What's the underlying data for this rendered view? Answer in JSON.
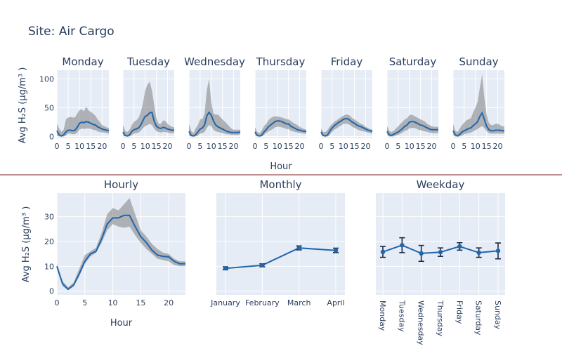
{
  "title": "Site: Air Cargo",
  "colors": {
    "plot_bg": "#e5ecf6",
    "grid": "#ffffff",
    "line": "#2166ac",
    "band": "#808080",
    "divider": "#7f1d1d",
    "text": "#2a3f5f"
  },
  "shared": {
    "top_ylabel": "Avg H₂S (µg/m³ )",
    "top_xlabel": "Hour",
    "bottom_ylabel": "Avg H₂S (µg/m³ )"
  },
  "chart_data": [
    {
      "type": "line",
      "title": "Monday",
      "x": [
        0,
        1,
        2,
        3,
        4,
        5,
        6,
        7,
        8,
        9,
        10,
        11,
        12,
        13,
        14,
        15,
        16,
        17,
        18,
        19,
        20,
        21,
        22,
        23
      ],
      "y": [
        10,
        3,
        1,
        3,
        8,
        11,
        11,
        10,
        11,
        16,
        23,
        25,
        24,
        26,
        25,
        23,
        21,
        20,
        17,
        15,
        13,
        12,
        11,
        10
      ],
      "lower": [
        2,
        0,
        0,
        0,
        2,
        5,
        5,
        4,
        4,
        7,
        12,
        14,
        13,
        14,
        14,
        13,
        12,
        11,
        9,
        8,
        7,
        7,
        6,
        5
      ],
      "upper": [
        22,
        14,
        8,
        12,
        30,
        33,
        34,
        33,
        33,
        40,
        46,
        47,
        44,
        52,
        45,
        43,
        40,
        36,
        30,
        25,
        20,
        18,
        16,
        15
      ],
      "xlim": [
        0,
        23
      ],
      "ylim": [
        -3,
        115
      ],
      "xticks": [
        0,
        5,
        10,
        15,
        20
      ],
      "yticks": [
        0,
        50,
        100
      ]
    },
    {
      "type": "line",
      "title": "Tuesday",
      "x": [
        0,
        1,
        2,
        3,
        4,
        5,
        6,
        7,
        8,
        9,
        10,
        11,
        12,
        13,
        14,
        15,
        16,
        17,
        18,
        19,
        20,
        21,
        22,
        23
      ],
      "y": [
        8,
        2,
        1,
        3,
        9,
        12,
        13,
        15,
        20,
        28,
        35,
        37,
        41,
        42,
        27,
        18,
        15,
        14,
        16,
        15,
        13,
        12,
        11,
        11
      ],
      "lower": [
        2,
        0,
        0,
        0,
        3,
        5,
        6,
        7,
        10,
        15,
        18,
        20,
        22,
        20,
        14,
        9,
        8,
        7,
        8,
        8,
        7,
        6,
        6,
        6
      ],
      "upper": [
        20,
        10,
        8,
        12,
        20,
        26,
        28,
        32,
        42,
        58,
        80,
        90,
        95,
        80,
        55,
        32,
        22,
        22,
        28,
        27,
        22,
        19,
        17,
        16
      ],
      "xlim": [
        0,
        23
      ],
      "ylim": [
        -3,
        115
      ],
      "xticks": [
        0,
        5,
        10,
        15,
        20
      ],
      "yticks": [
        0,
        50,
        100
      ]
    },
    {
      "type": "line",
      "title": "Wednesday",
      "x": [
        0,
        1,
        2,
        3,
        4,
        5,
        6,
        7,
        8,
        9,
        10,
        11,
        12,
        13,
        14,
        15,
        16,
        17,
        18,
        19,
        20,
        21,
        22,
        23
      ],
      "y": [
        9,
        2,
        1,
        3,
        8,
        13,
        15,
        20,
        36,
        42,
        37,
        27,
        20,
        17,
        15,
        13,
        11,
        9,
        8,
        7,
        7,
        7,
        7,
        8
      ],
      "lower": [
        2,
        0,
        0,
        0,
        2,
        5,
        6,
        8,
        15,
        20,
        18,
        12,
        9,
        8,
        7,
        6,
        5,
        4,
        4,
        3,
        3,
        3,
        3,
        4
      ],
      "upper": [
        22,
        10,
        6,
        14,
        20,
        30,
        30,
        40,
        80,
        100,
        60,
        40,
        38,
        38,
        34,
        30,
        26,
        22,
        18,
        14,
        12,
        12,
        12,
        12
      ],
      "xlim": [
        0,
        23
      ],
      "ylim": [
        -3,
        115
      ],
      "xticks": [
        0,
        5,
        10,
        15,
        20
      ],
      "yticks": [
        0,
        50,
        100
      ]
    },
    {
      "type": "line",
      "title": "Thursday",
      "x": [
        0,
        1,
        2,
        3,
        4,
        5,
        6,
        7,
        8,
        9,
        10,
        11,
        12,
        13,
        14,
        15,
        16,
        17,
        18,
        19,
        20,
        21,
        22,
        23
      ],
      "y": [
        8,
        2,
        1,
        2,
        8,
        12,
        17,
        20,
        23,
        26,
        27,
        27,
        26,
        24,
        22,
        22,
        18,
        16,
        14,
        12,
        11,
        10,
        9,
        9
      ],
      "lower": [
        3,
        0,
        0,
        0,
        3,
        6,
        9,
        11,
        13,
        16,
        17,
        17,
        16,
        15,
        13,
        13,
        10,
        9,
        8,
        7,
        6,
        6,
        5,
        5
      ],
      "upper": [
        16,
        8,
        6,
        10,
        18,
        22,
        28,
        32,
        34,
        35,
        35,
        34,
        33,
        32,
        30,
        30,
        27,
        24,
        22,
        20,
        17,
        15,
        13,
        12
      ],
      "xlim": [
        0,
        23
      ],
      "ylim": [
        -3,
        115
      ],
      "xticks": [
        0,
        5,
        10,
        15,
        20
      ],
      "yticks": [
        0,
        50,
        100
      ]
    },
    {
      "type": "line",
      "title": "Friday",
      "x": [
        0,
        1,
        2,
        3,
        4,
        5,
        6,
        7,
        8,
        9,
        10,
        11,
        12,
        13,
        14,
        15,
        16,
        17,
        18,
        19,
        20,
        21,
        22,
        23
      ],
      "y": [
        8,
        2,
        1,
        3,
        10,
        15,
        19,
        22,
        25,
        27,
        30,
        31,
        31,
        28,
        25,
        23,
        20,
        18,
        17,
        15,
        13,
        11,
        10,
        9
      ],
      "lower": [
        3,
        0,
        0,
        0,
        4,
        8,
        12,
        14,
        17,
        19,
        22,
        22,
        22,
        20,
        17,
        15,
        13,
        11,
        10,
        9,
        8,
        7,
        6,
        5
      ],
      "upper": [
        14,
        8,
        8,
        12,
        18,
        22,
        26,
        28,
        31,
        34,
        36,
        38,
        38,
        36,
        32,
        30,
        27,
        24,
        22,
        20,
        17,
        15,
        13,
        12
      ],
      "xlim": [
        0,
        23
      ],
      "ylim": [
        -3,
        115
      ],
      "xticks": [
        0,
        5,
        10,
        15,
        20
      ],
      "yticks": [
        0,
        50,
        100
      ]
    },
    {
      "type": "line",
      "title": "Saturday",
      "x": [
        0,
        1,
        2,
        3,
        4,
        5,
        6,
        7,
        8,
        9,
        10,
        11,
        12,
        13,
        14,
        15,
        16,
        17,
        18,
        19,
        20,
        21,
        22,
        23
      ],
      "y": [
        9,
        3,
        2,
        4,
        6,
        8,
        11,
        14,
        18,
        20,
        25,
        26,
        26,
        24,
        22,
        20,
        19,
        17,
        15,
        13,
        12,
        12,
        12,
        12
      ],
      "lower": [
        3,
        0,
        0,
        0,
        2,
        3,
        5,
        7,
        10,
        11,
        14,
        15,
        15,
        14,
        12,
        11,
        10,
        9,
        8,
        7,
        6,
        6,
        6,
        6
      ],
      "upper": [
        18,
        10,
        8,
        10,
        14,
        18,
        22,
        26,
        30,
        32,
        37,
        38,
        36,
        34,
        32,
        30,
        28,
        26,
        22,
        20,
        18,
        17,
        17,
        17
      ],
      "xlim": [
        0,
        23
      ],
      "ylim": [
        -3,
        115
      ],
      "xticks": [
        0,
        5,
        10,
        15,
        20
      ],
      "yticks": [
        0,
        50,
        100
      ]
    },
    {
      "type": "line",
      "title": "Sunday",
      "x": [
        0,
        1,
        2,
        3,
        4,
        5,
        6,
        7,
        8,
        9,
        10,
        11,
        12,
        13,
        14,
        15,
        16,
        17,
        18,
        19,
        20,
        21,
        22,
        23
      ],
      "y": [
        10,
        3,
        1,
        4,
        8,
        10,
        12,
        14,
        15,
        19,
        22,
        26,
        35,
        41,
        30,
        18,
        12,
        10,
        10,
        11,
        11,
        11,
        10,
        10
      ],
      "lower": [
        3,
        0,
        0,
        0,
        2,
        4,
        5,
        6,
        7,
        9,
        11,
        13,
        16,
        18,
        15,
        9,
        6,
        5,
        5,
        5,
        5,
        5,
        5,
        5
      ],
      "upper": [
        22,
        10,
        8,
        14,
        20,
        24,
        28,
        30,
        32,
        42,
        50,
        60,
        85,
        108,
        68,
        38,
        24,
        20,
        20,
        22,
        22,
        20,
        18,
        17
      ],
      "xlim": [
        0,
        23
      ],
      "ylim": [
        -3,
        115
      ],
      "xticks": [
        0,
        5,
        10,
        15,
        20
      ],
      "yticks": [
        0,
        50,
        100
      ]
    },
    {
      "type": "line",
      "title": "Hourly",
      "xlabel": "Hour",
      "x": [
        0,
        1,
        2,
        3,
        4,
        5,
        6,
        7,
        8,
        9,
        10,
        11,
        12,
        13,
        14,
        15,
        16,
        17,
        18,
        19,
        20,
        21,
        22,
        23
      ],
      "y": [
        10,
        3,
        0.8,
        2.5,
        7,
        12,
        15,
        16,
        21,
        27,
        29.5,
        29.5,
        30.5,
        30.5,
        26,
        22,
        19.5,
        16.5,
        14.5,
        14,
        13.8,
        12,
        11,
        11
      ],
      "lower": [
        9,
        2,
        0.3,
        1.8,
        6,
        11,
        14,
        15.5,
        19.5,
        24.5,
        27,
        26,
        25.5,
        26,
        22.5,
        19.5,
        17,
        15,
        13,
        12.5,
        12,
        10.5,
        10,
        10
      ],
      "upper": [
        11,
        4,
        1.5,
        3.5,
        9,
        14.5,
        16,
        17.5,
        23.5,
        31,
        33.5,
        32.5,
        35,
        37.5,
        31,
        24.5,
        22,
        19,
        17,
        15.5,
        15,
        13,
        12,
        12
      ],
      "xlim": [
        0,
        23
      ],
      "ylim": [
        -1.5,
        39.5
      ],
      "xticks": [
        0,
        5,
        10,
        15,
        20
      ],
      "yticks": [
        0,
        10,
        20,
        30
      ]
    },
    {
      "type": "line",
      "title": "Monthly",
      "categories": [
        "January",
        "February",
        "March",
        "April"
      ],
      "y": [
        9.2,
        10.4,
        17.4,
        16.4
      ],
      "err": [
        0.6,
        0.6,
        0.8,
        0.9
      ],
      "ylim": [
        -1.5,
        39.5
      ]
    },
    {
      "type": "line",
      "title": "Weekday",
      "categories": [
        "Monday",
        "Tuesday",
        "Wednesday",
        "Thursday",
        "Friday",
        "Saturday",
        "Sunday"
      ],
      "y": [
        15.8,
        18.5,
        15.2,
        15.7,
        18.0,
        15.5,
        16.2
      ],
      "err": [
        2.2,
        3.0,
        3.2,
        1.7,
        1.5,
        1.9,
        3.2
      ],
      "ylim": [
        -1.5,
        39.5
      ]
    }
  ]
}
